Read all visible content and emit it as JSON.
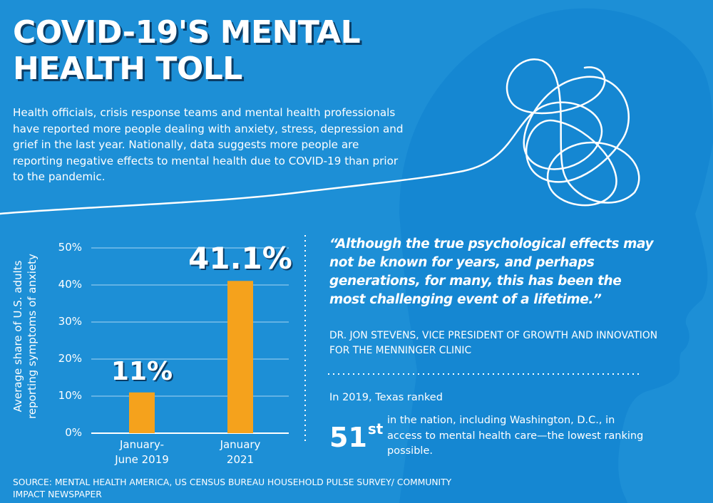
{
  "title": "COVID-19'S MENTAL HEALTH TOLL",
  "intro": "Health officials, crisis response teams and mental health professionals have reported more people dealing with anxiety, stress, depression and grief in the last year. Nationally, data suggests more people are reporting negative effects to mental health due to COVID-19 than prior to the pandemic.",
  "colors": {
    "background": "#1d8fd6",
    "head_silhouette": "#1587d2",
    "bar": "#f5a21c",
    "text": "#ffffff",
    "title_shadow": "#0b3d66"
  },
  "icons": [
    "head-silhouette-icon",
    "tangled-thought-line-icon"
  ],
  "chart_data": {
    "type": "bar",
    "categories": [
      "January-\nJune 2019",
      "January\n2021"
    ],
    "values": [
      11,
      41.1
    ],
    "data_labels": [
      "11%",
      "41.1%"
    ],
    "ylabel": "Average share of U.S. adults reporting symptoms of anxiety",
    "ylim": [
      0,
      50
    ],
    "yticks": [
      0,
      10,
      20,
      30,
      40,
      50
    ],
    "ytick_labels": [
      "0%",
      "10%",
      "20%",
      "30%",
      "40%",
      "50%"
    ],
    "grid": true,
    "legend": "none"
  },
  "quote": {
    "text": "“Although the true psychological effects may not be known for years, and perhaps generations, for many, this has been the most challenging event of a lifetime.”",
    "attribution": "DR. JON STEVENS, VICE PRESIDENT OF GROWTH AND INNOVATION FOR THE MENNINGER CLINIC"
  },
  "stat": {
    "intro": "In 2019, Texas ranked",
    "value": "51",
    "suffix": "st",
    "text": "in the nation, including Washington, D.C., in access to mental health care—the lowest ranking possible."
  },
  "source": "SOURCE: MENTAL HEALTH AMERICA, US CENSUS BUREAU HOUSEHOLD PULSE SURVEY/ COMMUNITY IMPACT NEWSPAPER"
}
